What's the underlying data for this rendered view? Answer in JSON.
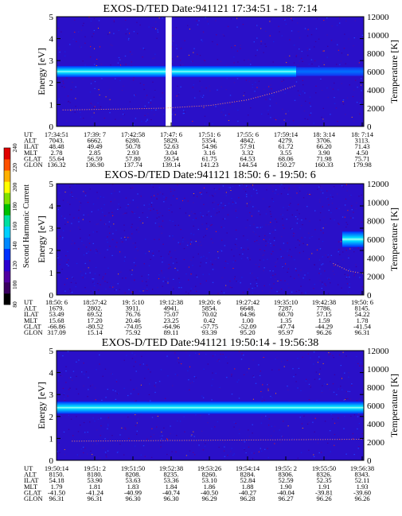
{
  "figure": {
    "colorbar": {
      "label": "Second Harmonic Current",
      "ticks": [
        "80",
        "100",
        "120",
        "140",
        "160",
        "180",
        "200",
        "220",
        "240"
      ],
      "colors": [
        "#000000",
        "#3a0060",
        "#5000a0",
        "#2a00d0",
        "#0030ff",
        "#0088ff",
        "#00d0ff",
        "#00e0a0",
        "#00c000",
        "#80e000",
        "#ffff00",
        "#ffb000",
        "#ff5000",
        "#e00000"
      ]
    }
  },
  "chart_data": [
    {
      "type": "heatmap",
      "title": "EXOS-D/TED   Date:941121  17:34:51 - 18: 7:14",
      "ylabel": "Energy [eV]",
      "y2label": "Temperature [K]",
      "ylim": [
        0,
        5
      ],
      "y2lim": [
        0,
        12000
      ],
      "yticks": [
        "0",
        "1",
        "2",
        "3",
        "4",
        "5"
      ],
      "y2ticks": [
        "0",
        "2000",
        "4000",
        "6000",
        "8000",
        "10000",
        "12000"
      ],
      "data_gaps": [
        [
          0.355,
          0.375
        ]
      ],
      "energy_bands": [
        {
          "from": 0.0,
          "to": 0.355,
          "center": 2.5,
          "width": 0.5,
          "level": "high"
        },
        {
          "from": 0.375,
          "to": 0.78,
          "center": 2.5,
          "width": 0.5,
          "level": "high"
        },
        {
          "from": 0.78,
          "to": 1.0,
          "center": 2.5,
          "width": 0.4,
          "level": "low"
        }
      ],
      "temperature_trace": [
        {
          "x": 0.02,
          "t": 1800
        },
        {
          "x": 0.2,
          "t": 1900
        },
        {
          "x": 0.35,
          "t": 2000
        },
        {
          "x": 0.5,
          "t": 2300
        },
        {
          "x": 0.62,
          "t": 2900
        },
        {
          "x": 0.72,
          "t": 3800
        },
        {
          "x": 0.78,
          "t": 4500
        }
      ],
      "table": {
        "row_labels": [
          "UT",
          "ALT",
          "ILAT",
          "MLT",
          "GLAT",
          "GLON"
        ],
        "columns": [
          [
            "17:34:51",
            "7043.",
            "48.48",
            "2.78",
            "55.64",
            "136.32"
          ],
          [
            "17:39: 7",
            "6662.",
            "49.49",
            "2.85",
            "56.59",
            "136.90"
          ],
          [
            "17:42:58",
            "6280.",
            "50.78",
            "2.93",
            "57.80",
            "137.74"
          ],
          [
            "17:47: 6",
            "5829.",
            "52.63",
            "3.04",
            "59.54",
            "139.14"
          ],
          [
            "17:51: 6",
            "5354.",
            "54.96",
            "3.16",
            "61.75",
            "141.23"
          ],
          [
            "17:55: 6",
            "4842.",
            "57.91",
            "3.32",
            "64.53",
            "144.54"
          ],
          [
            "17:59:14",
            "4279.",
            "61.72",
            "3.55",
            "68.06",
            "150.27"
          ],
          [
            "18: 3:14",
            "3706.",
            "66.20",
            "3.90",
            "71.98",
            "160.33"
          ],
          [
            "18: 7:14",
            "3113.",
            "71.43",
            "4.50",
            "75.71",
            "179.98"
          ]
        ]
      }
    },
    {
      "type": "heatmap",
      "title": "EXOS-D/TED   Date:941121  18:50: 6 - 19:50: 6",
      "ylabel": "Energy [eV]",
      "y2label": "Temperature [K]",
      "ylim": [
        0,
        5
      ],
      "y2lim": [
        0,
        12000
      ],
      "yticks": [
        "0",
        "1",
        "2",
        "3",
        "4",
        "5"
      ],
      "y2ticks": [
        "0",
        "2000",
        "4000",
        "6000",
        "8000",
        "10000",
        "12000"
      ],
      "data_gaps": [],
      "energy_bands": [
        {
          "from": 0.93,
          "to": 1.0,
          "center": 2.5,
          "width": 0.7,
          "level": "high"
        }
      ],
      "temperature_trace": [
        {
          "x": 0.9,
          "t": 3400
        },
        {
          "x": 0.95,
          "t": 2600
        },
        {
          "x": 1.0,
          "t": 2300
        }
      ],
      "table": {
        "row_labels": [
          "UT",
          "ALT",
          "ILAT",
          "MLT",
          "GLAT",
          "GLON"
        ],
        "columns": [
          [
            "18:50: 6",
            "1679.",
            "53.49",
            "15.68",
            "-66.86",
            "317.09"
          ],
          [
            "18:57:42",
            "2802.",
            "69.52",
            "17.20",
            "-80.52",
            "15.14"
          ],
          [
            "19: 5:10",
            "3911.",
            "76.76",
            "20.46",
            "-74.05",
            "75.92"
          ],
          [
            "19:12:38",
            "4941.",
            "75.07",
            "23.25",
            "-64.96",
            "89.11"
          ],
          [
            "19:20: 6",
            "5854.",
            "70.02",
            "0.42",
            "-57.75",
            "93.39"
          ],
          [
            "19:27:42",
            "6648.",
            "64.96",
            "1.00",
            "-52.09",
            "95.20"
          ],
          [
            "19:35:10",
            "7287.",
            "60.70",
            "1.35",
            "-47.74",
            "95.97"
          ],
          [
            "19:42:38",
            "7786.",
            "57.15",
            "1.59",
            "-44.29",
            "96.26"
          ],
          [
            "19:50: 6",
            "8145.",
            "54.22",
            "1.78",
            "-41.54",
            "96.31"
          ]
        ]
      }
    },
    {
      "type": "heatmap",
      "title": "EXOS-D/TED   Date:941121  19:50:14 - 19:56:38",
      "ylabel": "Energy [eV]",
      "y2label": "Temperature [K]",
      "ylim": [
        0,
        5
      ],
      "y2lim": [
        0,
        12000
      ],
      "yticks": [
        "0",
        "1",
        "2",
        "3",
        "4",
        "5"
      ],
      "y2ticks": [
        "0",
        "2000",
        "4000",
        "6000",
        "8000",
        "10000",
        "12000"
      ],
      "data_gaps": [],
      "energy_bands": [
        {
          "from": 0.0,
          "to": 1.0,
          "center": 2.4,
          "width": 0.55,
          "level": "high"
        }
      ],
      "temperature_trace": [
        {
          "x": 0.05,
          "t": 2100
        },
        {
          "x": 0.5,
          "t": 2200
        },
        {
          "x": 1.0,
          "t": 2300
        }
      ],
      "table": {
        "row_labels": [
          "UT",
          "ALT",
          "ILAT",
          "MLT",
          "GLAT",
          "GLON"
        ],
        "columns": [
          [
            "19:50:14",
            "8150.",
            "54.18",
            "1.79",
            "-41.50",
            "96.31"
          ],
          [
            "19:51: 2",
            "8180.",
            "53.90",
            "1.81",
            "-41.24",
            "96.31"
          ],
          [
            "19:51:50",
            "8208.",
            "53.63",
            "1.83",
            "-40.99",
            "96.30"
          ],
          [
            "19:52:38",
            "8235.",
            "53.36",
            "1.84",
            "-40.74",
            "96.30"
          ],
          [
            "19:53:26",
            "8260.",
            "53.10",
            "1.86",
            "-40.50",
            "96.29"
          ],
          [
            "19:54:14",
            "8284.",
            "52.84",
            "1.88",
            "-40.27",
            "96.28"
          ],
          [
            "19:55: 2",
            "8306.",
            "52.59",
            "1.90",
            "-40.04",
            "96.27"
          ],
          [
            "19:55:50",
            "8326.",
            "52.35",
            "1.91",
            "-39.81",
            "96.26"
          ],
          [
            "19:56:38",
            "8343.",
            "52.11",
            "1.93",
            "-39.60",
            "96.26"
          ]
        ]
      }
    }
  ]
}
